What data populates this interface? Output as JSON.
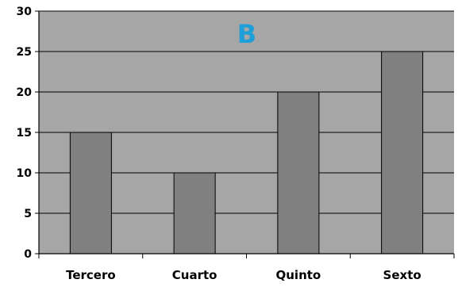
{
  "chart_data": {
    "type": "bar",
    "title": "B",
    "xlabel": "",
    "ylabel": "",
    "categories": [
      "Tercero",
      "Cuarto",
      "Quinto",
      "Sexto"
    ],
    "series": [
      {
        "values": [
          15,
          10,
          20,
          25
        ]
      }
    ],
    "ylim": [
      0,
      30
    ],
    "yticks": [
      0,
      5,
      10,
      15,
      20,
      25,
      30
    ],
    "grid": true,
    "legend": "none",
    "colors": {
      "plot_background": "#a6a6a6",
      "bar_fill": "#808080",
      "bar_stroke": "#000000",
      "gridline": "#000000",
      "title": "#1e9fd8",
      "axis_text": "#000000"
    }
  }
}
